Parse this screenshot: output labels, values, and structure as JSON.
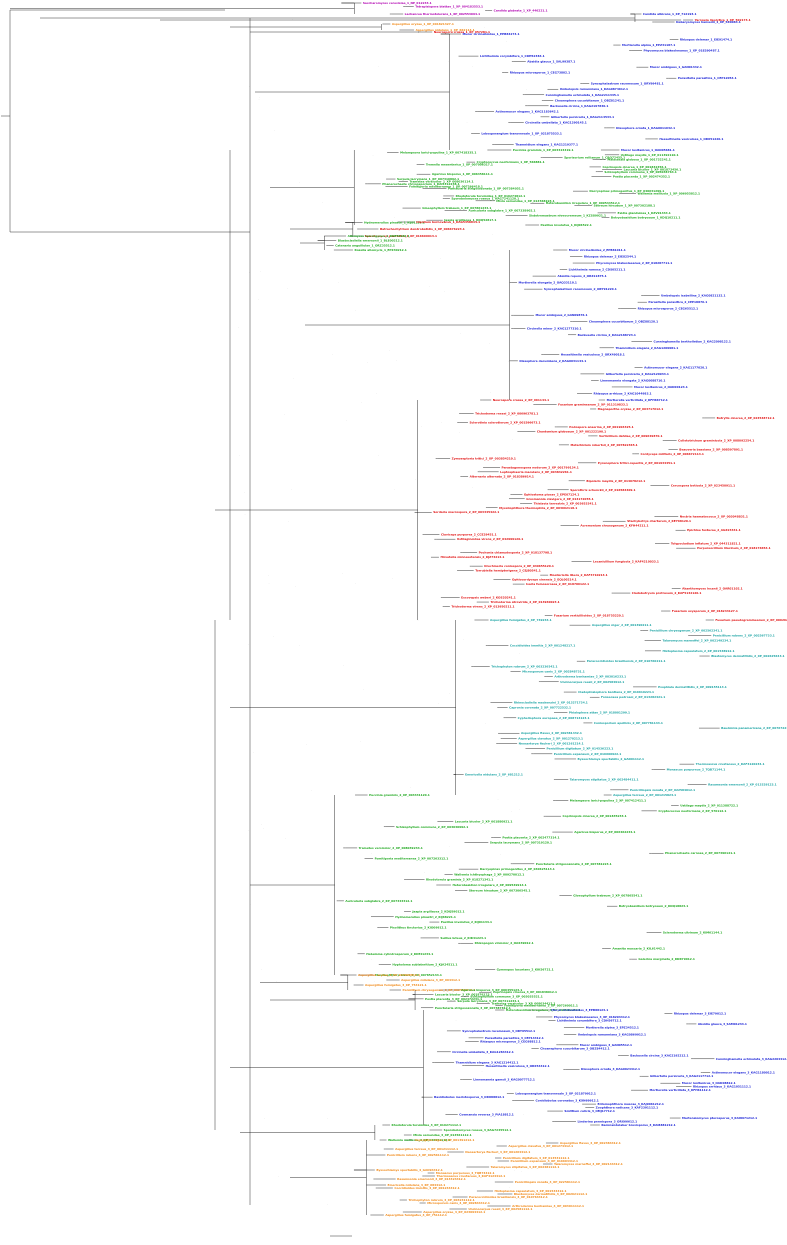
{
  "colors": {
    "magenta": "#b000b0",
    "blue": "#1a22d6",
    "red": "#e01010",
    "orange": "#f08a1a",
    "green": "#1fa81f",
    "teal": "#1aa3a3"
  },
  "leaf_groups": [
    {
      "color": "magenta",
      "labels": [
        "Saccharomyces cerevisiae_1_NP_012233.1",
        "Tetrapisispora blattae_1_XP_004183553.1",
        "Candida glabrata_1_XP_446221.1",
        "Lachancea thermotolerans_1_XP_002553094.1"
      ]
    },
    {
      "color": "blue",
      "labels": [
        "Candida albicans_1_XP_712193.1",
        "Debaryomyces hansenii_1_XP_460064.1"
      ]
    },
    {
      "color": "red",
      "labels": [
        "Yarrowia lipolytica_1_XP_502173.1"
      ]
    },
    {
      "color": "orange",
      "labels": [
        "Aspergillus oryzae_1_XP_001821327.1",
        "Aspergillus nidulans_1_XP_662114.1"
      ]
    },
    {
      "color": "red",
      "labels": [
        "Neurospora crassa_1_XP_957281.1"
      ]
    },
    {
      "color": "blue",
      "labels": [
        "Mucor circinelloides_1_EPB84273.1",
        "Rhizopus delemar_1_EIE91474.1",
        "Mortierella alpina_1_EPZ31187.1",
        "Phycomyces blakesleeanus_1_XP_018290487.1",
        "Lichtheimia corymbifera_1_CDH52384.1",
        "Absidia glauca_1_SAL99387.1",
        "Mucor ambiguus_1_GAN01342.1",
        "Rhizopus microsporus_1_CEG73802.1",
        "Parasitella parasitica_1_CEP12054.1",
        "Syncephalastrum racemosum_1_ORY99481.1",
        "Umbelopsis ramanniana_1_KAG0874612.1",
        "Cunninghamella echinulata_1_KAG2211345.1",
        "Choanephora cucurbitarum_1_OBZ81241.1",
        "Backusella circina_1_KAG2197830.1",
        "Actinomucor elegans_1_KAG1183642.1",
        "Gilbertella persicaria_1_KAG2114533.1",
        "Circinella umbellata_1_KAG1290145.1",
        "Dissophora ornata_1_KAG0011632.1",
        "Lobosporangium transversale_1_XP_021875533.1",
        "Hesseltinella vesiculosa_1_ORX51220.1",
        "Thamnidium elegans_1_KAG1219377.1",
        "Mucor lusitanicus_1_OAD05681.1"
      ]
    },
    {
      "color": "green",
      "labels": [
        "Puccinia graminis_1_XP_003324419.1",
        "Melampsora larici-populina_1_XP_007418335.1",
        "Ustilago maydis_1_XP_011392110.1",
        "Sporisorium reilianum_1_CBQ72455.1",
        "Malassezia globosa_1_XP_001732241.1",
        "Cryptococcus neoformans_1_XP_566881.1",
        "Tremella mesenterica_1_XP_007006317.1",
        "Coprinopsis cinerea_1_XP_001832456.1",
        "Laccaria bicolor_1_XP_001873456.1",
        "Schizophyllum commune_1_XP_003038764.1",
        "Agaricus bisporus_1_XP_006458111.1",
        "Postia placenta_1_XP_002474352.1",
        "Serpula lacrymans_1_XP_007316892.1",
        "Trametes versicolor_1_XP_008036114.1",
        "Phanerochaete chrysosporium_1_KAI3312238.1",
        "Fomitiporia mediterranea_1_XP_007266418.1",
        "Punctularia strigosozonata_1_XP_007384051.1",
        "Dacryopinax primogenitus_1_XP_040631299.1",
        "Wallemia mellicola_1_XP_006955812.1",
        "Rhodotorula toruloides_1_XP_016274812.1",
        "Sporobolomyces roseus_1_KAG7241120.1",
        "Mixia osmundae_1_XP_014568193.1",
        "Heterobasidion irregulare_1_XP_009544512.1",
        "Stereum hirsutum_1_XP_007302188.1",
        "Gloeophyllum trabeum_1_XP_007861234.1",
        "Auricularia subglabra_1_XP_007338902.1",
        "Exidia glandulosa_1_KZV91334.1",
        "Sistotremastrum niveocremeum_1_KZS89921.1",
        "Botryobasidium botryosum_1_KDQ10211.1",
        "Jaapia argillacea_1_KDQ52817.1",
        "Hydnomerulius pinastri_1_KIJ61124.1",
        "Paxillus involutus_1_KIJ06522.1"
      ]
    },
    {
      "color": "red",
      "labels": [
        "Olpidium bornovanus_1_KAG5458914.1",
        "Batrachochytrium dendrobatidis_1_XP_006676223.1",
        "Spizellomyces punctatus_1_XP_016609913.1"
      ]
    },
    {
      "color": "green",
      "labels": [
        "Allomyces macrogynus_1_KNE55281.1",
        "Blastocladiella emersonii_1_BLE00212.1",
        "Catenaria anguillulae_1_ORZ35512.1",
        "Rozella allomycis_1_EPZ30212.1"
      ]
    },
    {
      "color": "blue",
      "labels": [
        "Mucor circinelloides_2_EPB81011.1",
        "Rhizopus delemar_2_EIE82544.1",
        "Phycomyces blakesleeanus_2_XP_018287711.1",
        "Lichtheimia ramosa_2_CDS05211.1",
        "Absidia repens_2_ORZ11875.1",
        "Mortierella elongata_2_OAQ33110.1",
        "Syncephalastrum racemosum_2_ORY91220.1",
        "Umbelopsis isabellina_2_KAG0821132.1",
        "Parasitella parasitica_2_CEP18876.1",
        "Rhizopus microsporus_2_CEG65512.1",
        "Mucor ambiguus_2_GAN09876.1",
        "Choanephora cucurbitarum_2_OBZ88120.1",
        "Circinella minor_2_KAG1277310.1",
        "Backusella circina_2_KAG2188723.1",
        "Cunninghamella bertholletiae_2_KAG2098122.1",
        "Thamnidium elegans_2_KAG1209981.1",
        "Hesseltinella vesiculosa_2_ORX49018.1",
        "Dissophora decumbens_2_KAG0031144.1",
        "Actinomucor elegans_2_KAG1177020.1",
        "Gilbertella persicaria_2_KAG2120934.1",
        "Linnemannia elongata_2_KAG0088710.1",
        "Mucor lusitanicus_2_OAD00124.1",
        "Rhizopus arrhizus_2_KAG1044983.1",
        "Mortierella verticillata_2_KFH66712.1"
      ]
    },
    {
      "color": "red",
      "labels": [
        "Neurospora crassa_2_XP_961144.1",
        "Fusarium graminearum_2_XP_011319833.1",
        "Magnaporthe oryzae_2_XP_003717612.1",
        "Trichoderma reesei_2_XP_006963781.1",
        "Botrytis cinerea_2_XP_024548712.1",
        "Sclerotinia sclerotiorum_2_XP_001596673.1",
        "Podospora anserina_2_XP_001904325.1",
        "Chaetomium globosum_2_XP_001222190.1",
        "Verticillium dahliae_2_XP_009649870.1",
        "Colletotrichum graminicola_2_XP_008092254.1",
        "Metarhizium robertsii_2_XP_007822365.1",
        "Beauveria bassiana_2_XP_008597891.1",
        "Cordyceps militaris_2_XP_006672114.1",
        "Zymoseptoria tritici_2_XP_003854210.1",
        "Pyrenophora tritici-repentis_2_XP_001934451.1",
        "Parastagonospora nodorum_2_XP_001799134.1",
        "Leptosphaeria maculans_2_XP_003842261.1",
        "Alternaria alternata_2_XP_018386614.1",
        "Bipolaris maydis_2_XP_014078212.1",
        "Cercospora beticola_2_XP_023450911.1",
        "Sporothrix schenckii_2_XP_016584409.1",
        "Ophiostoma piceae_2_EPE07124.1",
        "Grosmannia clavigera_2_XP_014172055.1",
        "Thielavia terrestris_2_XP_003653341.1",
        "Myceliophthora thermophila_2_XP_003662118.1",
        "Sordaria macrospora_2_XP_003345422.1",
        "Nectria haematococca_2_XP_003048831.1",
        "Stachybotrys chartarum_2_KEY68120.1",
        "Acremonium chrysogenum_2_KFH44211.1",
        "Epichloe festucae_2_AGZ23341.1",
        "Claviceps purpurea_2_CCE29451.1",
        "Ustilaginoidea virens_2_XP_042999120.1",
        "Tolypocladium inflatum_2_XP_044311821.1",
        "Purpureocillium lilacinum_2_XP_018176654.1",
        "Pochonia chlamydosporia_2_XP_018137798.1",
        "Hirsutella minnesotensis_2_KJZ73214.1",
        "Lecanicillium fungicola_2_KAF4210033.1",
        "Drechmeria coniospora_2_XP_040655120.1",
        "Torrubiella hemipterigena_2_CEJ80541.1",
        "Moelleriella libera_2_KAF4710213.1",
        "Ophiocordyceps sinensis_2_EQL00214.1",
        "Isaria fumosorosea_2_XP_018706122.1",
        "Akanthomyces lecanii_2_OAR01102.1",
        "Cladobotryum protrusum_2_KAF5132120.1",
        "Escovopsis weberi_2_KOS20241.1",
        "Trichoderma atroviride_2_XP_013940023.1",
        "Trichoderma virens_2_XP_013950211.1",
        "Fusarium oxysporum_2_XP_018243127.1",
        "Fusarium verticillioides_2_XP_018755220.1",
        "Fusarium pseudograminearum_2_XP_009262113.1"
      ]
    },
    {
      "color": "teal",
      "labels": [
        "Aspergillus fumigatus_2_XP_749234.1",
        "Aspergillus niger_2_XP_001390211.1",
        "Penicillium chrysogenum_2_XP_002562341.1",
        "Penicillium rubens_2_XP_002567733.1",
        "Talaromyces marneffei_2_XP_002149234.1",
        "Coccidioides immitis_2_XP_001248217.1",
        "Histoplasma capsulatum_2_XP_001538912.1",
        "Blastomyces dermatitidis_2_XP_002625643.1",
        "Paracoccidioides brasiliensis_2_XP_010760211.1",
        "Trichophyton rubrum_2_XP_003236542.1",
        "Microsporum canis_2_XP_002848731.1",
        "Arthroderma benhamiae_2_XP_003016233.1",
        "Uncinocarpus reesii_2_XP_002584912.1",
        "Exophiala dermatitidis_2_XP_009155113.1",
        "Cladophialophora bantiana_2_XP_016619224.1",
        "Fonsecaea pedrosoi_2_XP_013282421.1",
        "Rhinocladiella mackenziei_2_XP_013271734.1",
        "Capronia coronata_2_XP_007722532.1",
        "Phialophora attae_2_XP_018001299.1",
        "Cyphellophora europaea_2_XP_008714123.1",
        "Coniosporium apollinis_2_XP_007781144.1",
        "Baudoinia panamericana_2_XP_007672213.1",
        "Aspergillus flavus_2_XP_002381432.1",
        "Aspergillus clavatus_2_XP_001270213.1",
        "Neosartorya fischeri_2_XP_001261214.1",
        "Penicillium digitatum_2_XP_014536223.1",
        "Penicillium expansum_2_XP_016600922.1",
        "Byssochlamys spectabilis_2_GAD91112.1",
        "Thermoascus crustaceus_2_KAF4120234.1",
        "Monascus purpureus_2_TQB71144.1",
        "Emericella nidulans_2_XP_681212.1",
        "Talaromyces stipitatus_2_XP_002484411.1",
        "Rasamsonia emersonii_2_XP_013329123.1",
        "Penicilliopsis zonata_2_XP_022584012.1",
        "Aspergillus terreus_2_XP_001215823.1"
      ]
    },
    {
      "color": "green",
      "labels": [
        "Puccinia graminis_2_XP_003331120.1",
        "Melampsora larici-populina_2_XP_007412411.1",
        "Ustilago maydis_2_XP_011388722.1",
        "Cryptococcus neoformans_2_XP_570112.1",
        "Coprinopsis cinerea_2_XP_001835233.1",
        "Laccaria bicolor_2_XP_001880921.1",
        "Schizophyllum commune_2_XP_003030992.1",
        "Agaricus bisporus_2_XP_006462234.1",
        "Postia placenta_2_XP_002477314.1",
        "Serpula lacrymans_2_XP_007319120.1",
        "Trametes versicolor_2_XP_008039234.1",
        "Phanerochaete carnosa_2_XP_007396121.1",
        "Fomitiporia mediterranea_2_XP_007263312.1",
        "Punctularia strigosozonata_2_XP_007381223.1",
        "Dacryopinax primogenitus_2_XP_040625113.1",
        "Wallemia ichthyophaga_2_XP_009270012.1",
        "Rhodotorula graminis_2_XP_018271341.1",
        "Heterobasidion irregulare_2_XP_009549914.1",
        "Stereum hirsutum_2_XP_007306545.1",
        "Gloeophyllum trabeum_2_XP_007865541.1",
        "Auricularia subglabra_2_XP_007343312.1",
        "Botryobasidium botryosum_2_KDQ18823.1",
        "Jaapia argillacea_2_KDQ59012.1",
        "Hydnomerulius pinastri_2_KIJ68221.1",
        "Paxillus involutus_2_KIJ01134.1",
        "Pisolithus tinctorius_2_KIO09912.1",
        "Scleroderma citrinum_2_KIM61144.1",
        "Suillus luteus_2_KIK41223.1",
        "Rhizopogon vinicolor_2_OAX39012.1",
        "Amanita muscaria_2_KIL61442.1",
        "Hebeloma cylindrosporum_2_KIM41234.1",
        "Galerina marginata_2_KDR79012.1",
        "Hypholoma sublateritium_2_KJA24511.1",
        "Gymnopus luxurians_2_KIK56721.1",
        "Moniliophthora roreri_2_XP_007852134.1"
      ]
    },
    {
      "color": "orange",
      "labels": [
        "Aspergillus oryzae_3_XP_023090812.1",
        "Aspergillus nidulans_3_XP_664312.1",
        "Aspergillus fumigatus_3_XP_754121.1",
        "Penicillium chrysogenum_3_XP_002558812.1"
      ]
    },
    {
      "color": "green",
      "labels": [
        "Agaricus bisporus_3_XP_006455123.1",
        "Coprinopsis cinerea_3_XP_001838912.1",
        "Laccaria bicolor_3_XP_001876123.1",
        "Schizophyllum commune_3_XP_003035521.1",
        "Postia placenta_3_XP_002472231.1",
        "Serpula lacrymans_3_XP_007311234.1",
        "Trametes versicolor_3_XP_008034412.1",
        "Fomitiporia mediterranea_3_XP_007260011.1",
        "Punctularia strigosozonata_3_XP_007387812.1",
        "Heterobasidion irregulare_3_XP_009541123.1"
      ]
    },
    {
      "color": "blue",
      "labels": [
        "Mucor circinelloides_3_EPB88123.1",
        "Rhizopus delemar_3_EIE79012.1",
        "Phycomyces blakesleeanus_3_XP_018294412.1",
        "Lichtheimia corymbifera_3_CDH56712.1",
        "Absidia glauca_3_SAM01234.1",
        "Mortierella alpina_3_EPZ34512.1",
        "Syncephalastrum racemosum_3_ORY95512.1",
        "Umbelopsis ramanniana_3_KAG0869912.1",
        "Parasitella parasitica_3_CEP14412.1",
        "Rhizopus microsporus_3_CEG68812.1",
        "Mucor ambiguus_3_GAN05512.1",
        "Choanephora cucurbitarum_3_OBZ84412.1",
        "Circinella umbellata_3_KAG1284412.1",
        "Backusella circina_3_KAG2192212.1",
        "Cunninghamella echinulata_3_KAG2204412.1",
        "Thamnidium elegans_3_KAG1214412.1",
        "Hesseltinella vesiculosa_3_ORX54412.1",
        "Dissophora ornata_3_KAG0024412.1",
        "Actinomucor elegans_3_KAG1180012.1",
        "Gilbertella persicaria_3_KAG2117712.1",
        "Linnemannia gamsii_3_KAG0077712.1",
        "Mucor lusitanicus_3_OAD08812.1",
        "Rhizopus arrhizus_3_KAG1051112.1",
        "Mortierella verticillata_3_KFH61112.1",
        "Lobosporangium transversale_3_XP_021879912.1",
        "Basidiobolus meristosporus_3_ORX88812.1",
        "Conidiobolus coronatus_3_KXN69912.1",
        "Entomophthora muscae_3_KAJ9061212.1",
        "Zoophthora radicans_3_KAF2391112.1",
        "Smittium culicis_3_OMJ17712.1",
        "Coemansia reversa_3_PIA18812.1",
        "Martensiomyces pterosporus_3_KAI8971212.1",
        "Linderina pennispora_3_ORX66612.1",
        "Ramicandelaber brevisporus_3_KAI8881212.1"
      ]
    },
    {
      "color": "green",
      "labels": [
        "Rhodotorula toruloides_3_XP_016271112.1",
        "Sporobolomyces roseus_3_KAG7245512.1",
        "Mixia osmundae_3_XP_014561112.1",
        "Wallemia mellicola_3_XP_006951112.1"
      ]
    },
    {
      "color": "orange",
      "labels": [
        "Aspergillus niger_4_XP_001391212.1",
        "Aspergillus flavus_4_XP_002384412.1",
        "Aspergillus clavatus_4_XP_001274412.1",
        "Aspergillus terreus_4_XP_001211112.1",
        "Neosartorya fischeri_4_XP_001264412.1",
        "Penicillium rubens_4_XP_002561112.1",
        "Penicillium digitatum_4_XP_014531112.1",
        "Penicillium expansum_4_XP_016604412.1",
        "Talaromyces marneffei_4_XP_002144412.1",
        "Talaromyces stipitatus_4_XP_002481112.1",
        "Byssochlamys spectabilis_4_GAD94412.1",
        "Monascus purpureus_4_TQB74412.1",
        "Thermoascus crustaceus_4_KAF4124412.1",
        "Rasamsonia emersonii_4_XP_013324412.1",
        "Penicilliopsis zonata_4_XP_022581112.1",
        "Emericella nidulans_4_XP_684412.1",
        "Coccidioides immitis_4_XP_001244412.1",
        "Histoplasma capsulatum_4_XP_001534412.1",
        "Blastomyces dermatitidis_4_XP_002621112.1",
        "Paracoccidioides brasiliensis_4_XP_010764412.1",
        "Trichophyton rubrum_4_XP_003231112.1",
        "Microsporum canis_4_XP_002844412.1",
        "Arthroderma benhamiae_4_XP_003011112.1",
        "Uncinocarpus reesii_4_XP_002581112.1",
        "Aspergillus oryzae_4_XP_023094412.1",
        "Aspergillus fumigatus_4_XP_751112.1"
      ]
    }
  ]
}
